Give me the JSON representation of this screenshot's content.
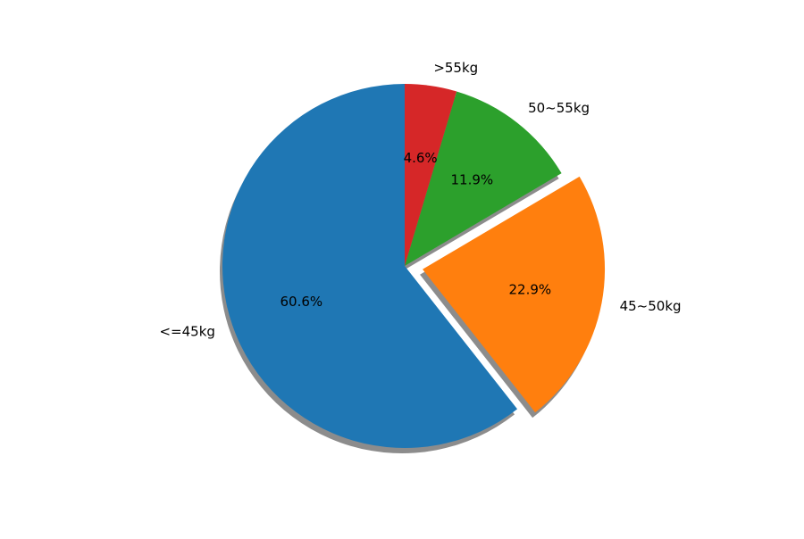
{
  "chart_data": {
    "type": "pie",
    "title": "",
    "labels": [
      "<=45kg",
      "45~50kg",
      "50~55kg",
      ">55kg"
    ],
    "values": [
      60.6,
      22.9,
      11.9,
      4.6
    ],
    "percent_labels": [
      "60.6%",
      "22.9%",
      "11.9%",
      "4.6%"
    ],
    "colors": [
      "#1f77b4",
      "#ff7f0e",
      "#2ca02c",
      "#d62728"
    ],
    "exploded": [
      false,
      true,
      false,
      false
    ],
    "start_angle_deg": 90,
    "direction": "counterclockwise",
    "shadow": true
  }
}
